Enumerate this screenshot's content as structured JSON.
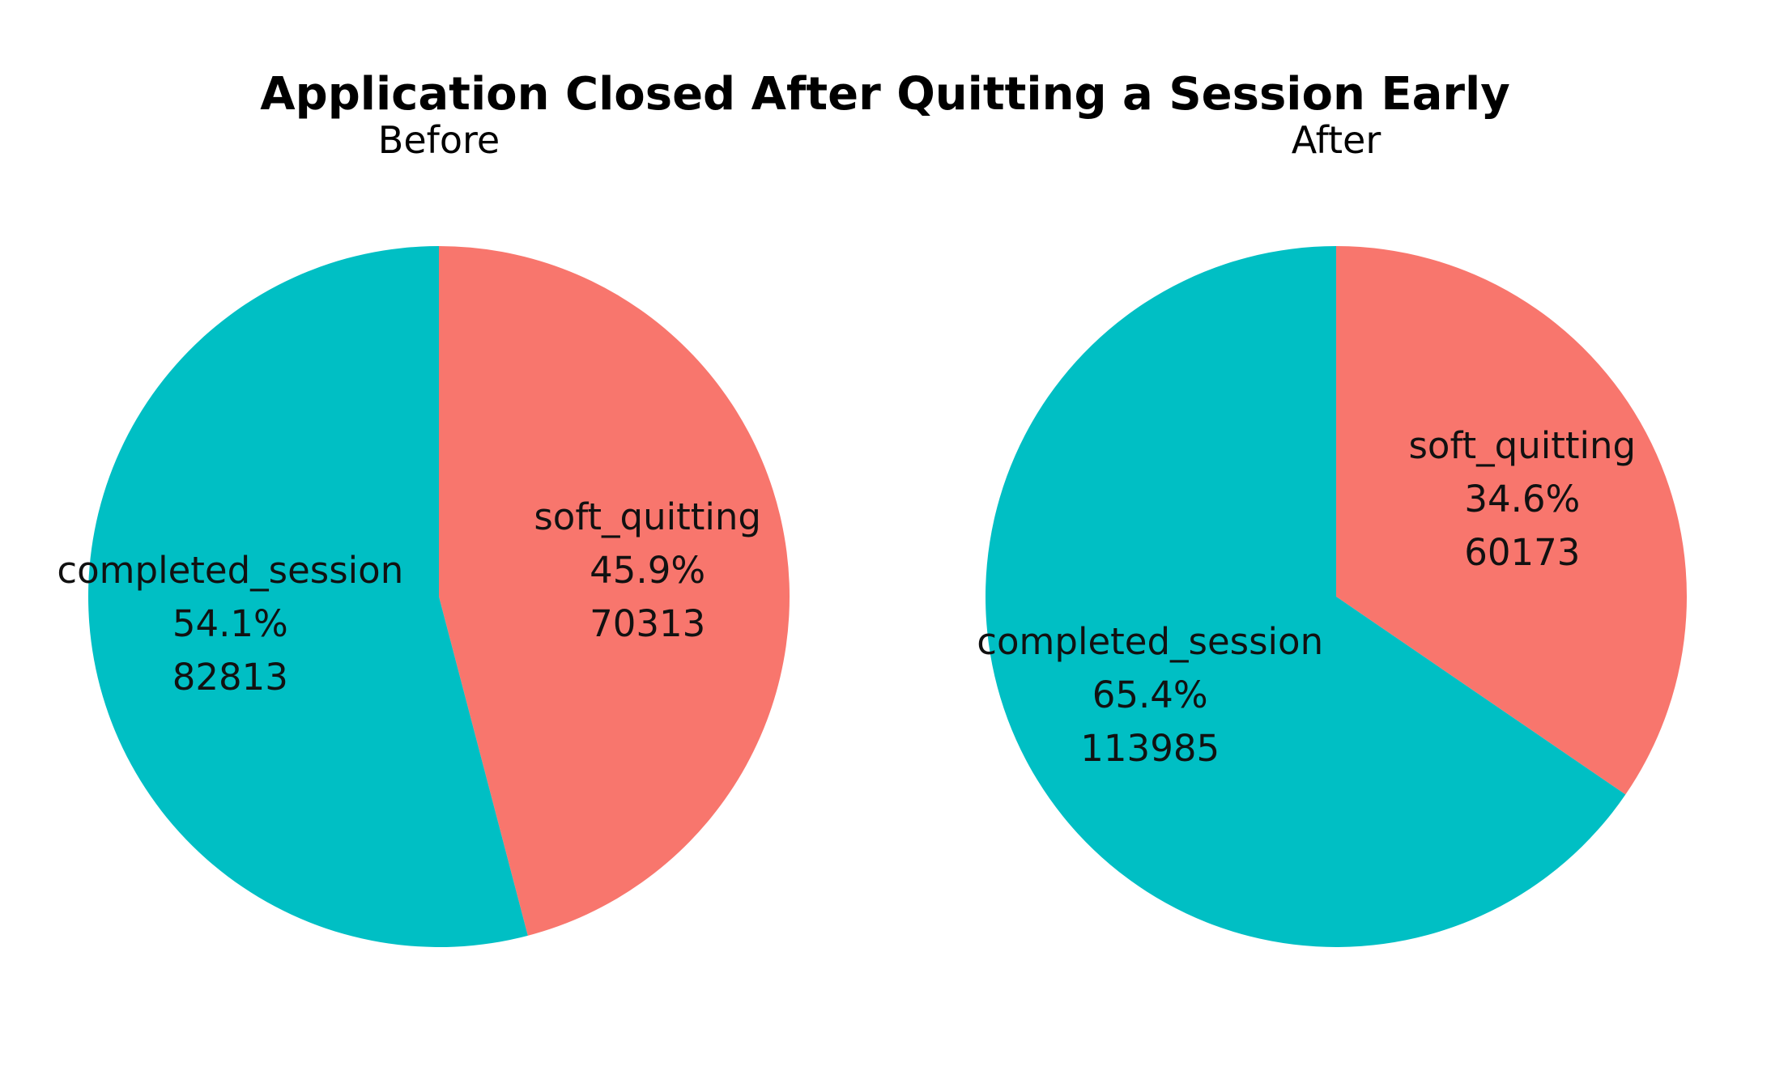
{
  "chart_data": {
    "type": "pie",
    "title": "Application Closed After Quitting a Session Early",
    "colors": {
      "soft_quitting": "#F8766D",
      "completed_session": "#00BFC4"
    },
    "pies": [
      {
        "subtitle": "Before",
        "slices": [
          {
            "label": "soft_quitting",
            "value": 70313,
            "percent": "45.9%",
            "count": "70313"
          },
          {
            "label": "completed_session",
            "value": 82813,
            "percent": "54.1%",
            "count": "82813"
          }
        ]
      },
      {
        "subtitle": "After",
        "slices": [
          {
            "label": "soft_quitting",
            "value": 60173,
            "percent": "34.6%",
            "count": "60173"
          },
          {
            "label": "completed_session",
            "value": 113985,
            "percent": "65.4%",
            "count": "113985"
          }
        ]
      }
    ]
  }
}
